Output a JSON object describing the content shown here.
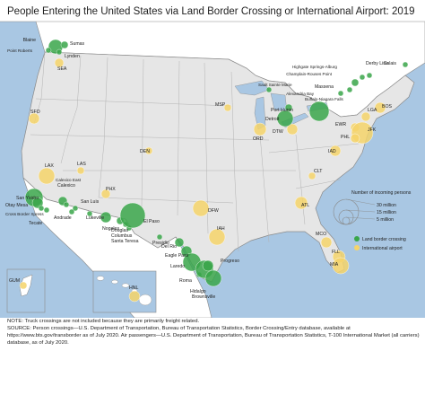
{
  "title": "People Entering the United States via Land Border Crossing or International Airport: 2019",
  "colors": {
    "land": "#3aa64a",
    "air": "#f5d46a",
    "us_fill": "#e6e6e6",
    "other_fill": "#ffffff",
    "water": "#a9c7e3",
    "border": "#8a8a8a"
  },
  "legend": {
    "heading": "Number of incoming persons",
    "sizes": [
      "30 million",
      "15 million",
      "5 million"
    ],
    "land_label": "Land border crossing",
    "air_label": "International airport"
  },
  "inset_labels": {
    "guam": "GUM",
    "hawaii": "HNL"
  },
  "land_crossings": [
    "Blaine",
    "Sumas",
    "Point Roberts",
    "Lynden",
    "Highgate Springs-Alburg",
    "Champlain-Rouses Point",
    "Derby Line",
    "Massena",
    "Alexandria Bay",
    "Calais",
    "Sault Sainte Marie",
    "Port Huron",
    "Detroit",
    "Buffalo-Niagara Falls",
    "San Ysidro",
    "Otay Mesa",
    "Cross Border Xpress",
    "Tecate",
    "Calexico",
    "Calexico East",
    "San Luis",
    "Andrade",
    "Lukeville",
    "Nogales",
    "Douglas",
    "Columbus",
    "Santa Teresa",
    "El Paso",
    "Presidio",
    "Del Rio",
    "Eagle Pass",
    "Laredo",
    "Roma",
    "Hidalgo",
    "Brownsville",
    "Progreso"
  ],
  "airports": [
    "SEA",
    "SFO",
    "LAX",
    "LAS",
    "PHX",
    "DEN",
    "MSP",
    "ORD",
    "DTW",
    "BOS",
    "EWR",
    "JFK",
    "PHL",
    "IAD",
    "LGA",
    "CLT",
    "ATL",
    "DFW",
    "IAH",
    "MCO",
    "FLL",
    "MIA",
    "HNL",
    "GUM"
  ],
  "notes": {
    "line1": "NOTE: Truck crossings are not included because they are primarily freight related.",
    "line2": "SOURCE: Person crossings—U.S. Department of Transportation, Bureau of Transportation Statistics, Border Crossing/Entry database, available at https://www.bts.gov/transborder as of July 2020. Air passengers—U.S. Department of Transportation, Bureau of Transportation Statistics, T-100 International Market (all carriers) database, as of July 2020."
  }
}
